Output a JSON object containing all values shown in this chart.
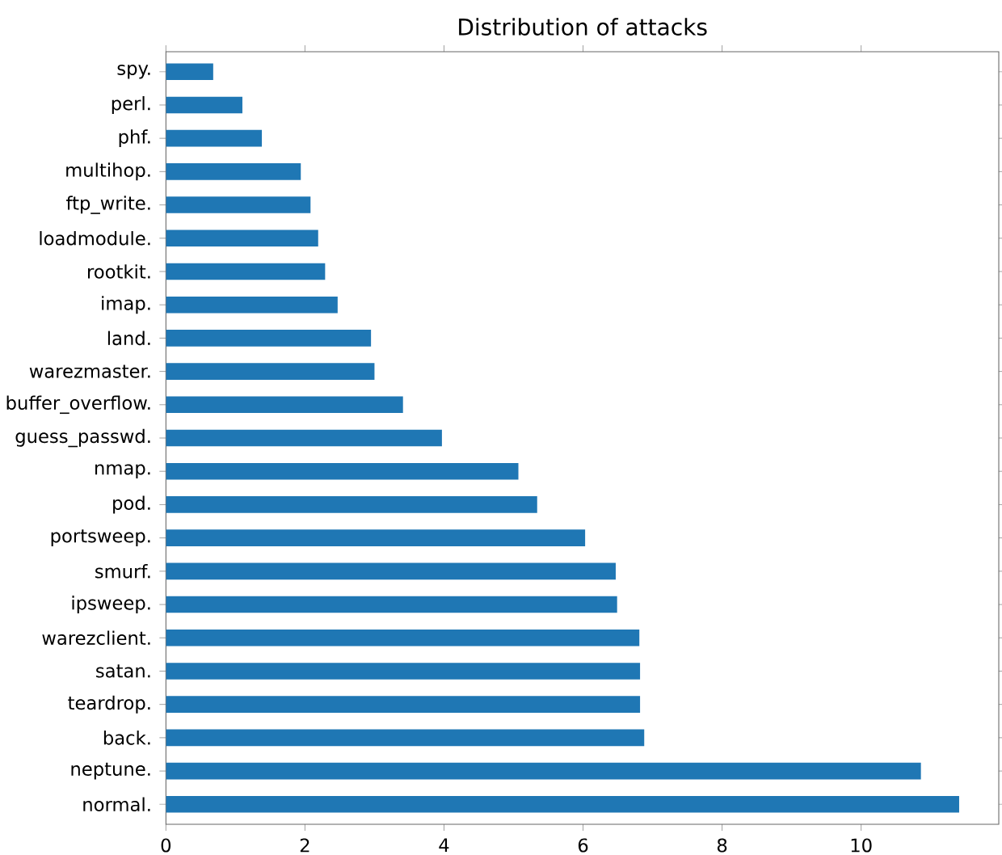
{
  "chart_data": {
    "type": "bar",
    "orientation": "horizontal",
    "title": "Distribution of attacks",
    "categories": [
      "spy.",
      "perl.",
      "phf.",
      "multihop.",
      "ftp_write.",
      "loadmodule.",
      "rootkit.",
      "imap.",
      "land.",
      "warezmaster.",
      "buffer_overflow.",
      "guess_passwd.",
      "nmap.",
      "pod.",
      "portsweep.",
      "smurf.",
      "ipsweep.",
      "warezclient.",
      "satan.",
      "teardrop.",
      "back.",
      "neptune.",
      "normal."
    ],
    "values": [
      0.68,
      1.1,
      1.38,
      1.94,
      2.08,
      2.19,
      2.29,
      2.47,
      2.95,
      3.0,
      3.41,
      3.97,
      5.07,
      5.34,
      6.03,
      6.47,
      6.49,
      6.81,
      6.82,
      6.82,
      6.88,
      10.86,
      11.41
    ],
    "color": "#1f77b4",
    "xlim": [
      0,
      11.98
    ],
    "xticks": [
      0,
      2,
      4,
      6,
      8,
      10
    ]
  }
}
